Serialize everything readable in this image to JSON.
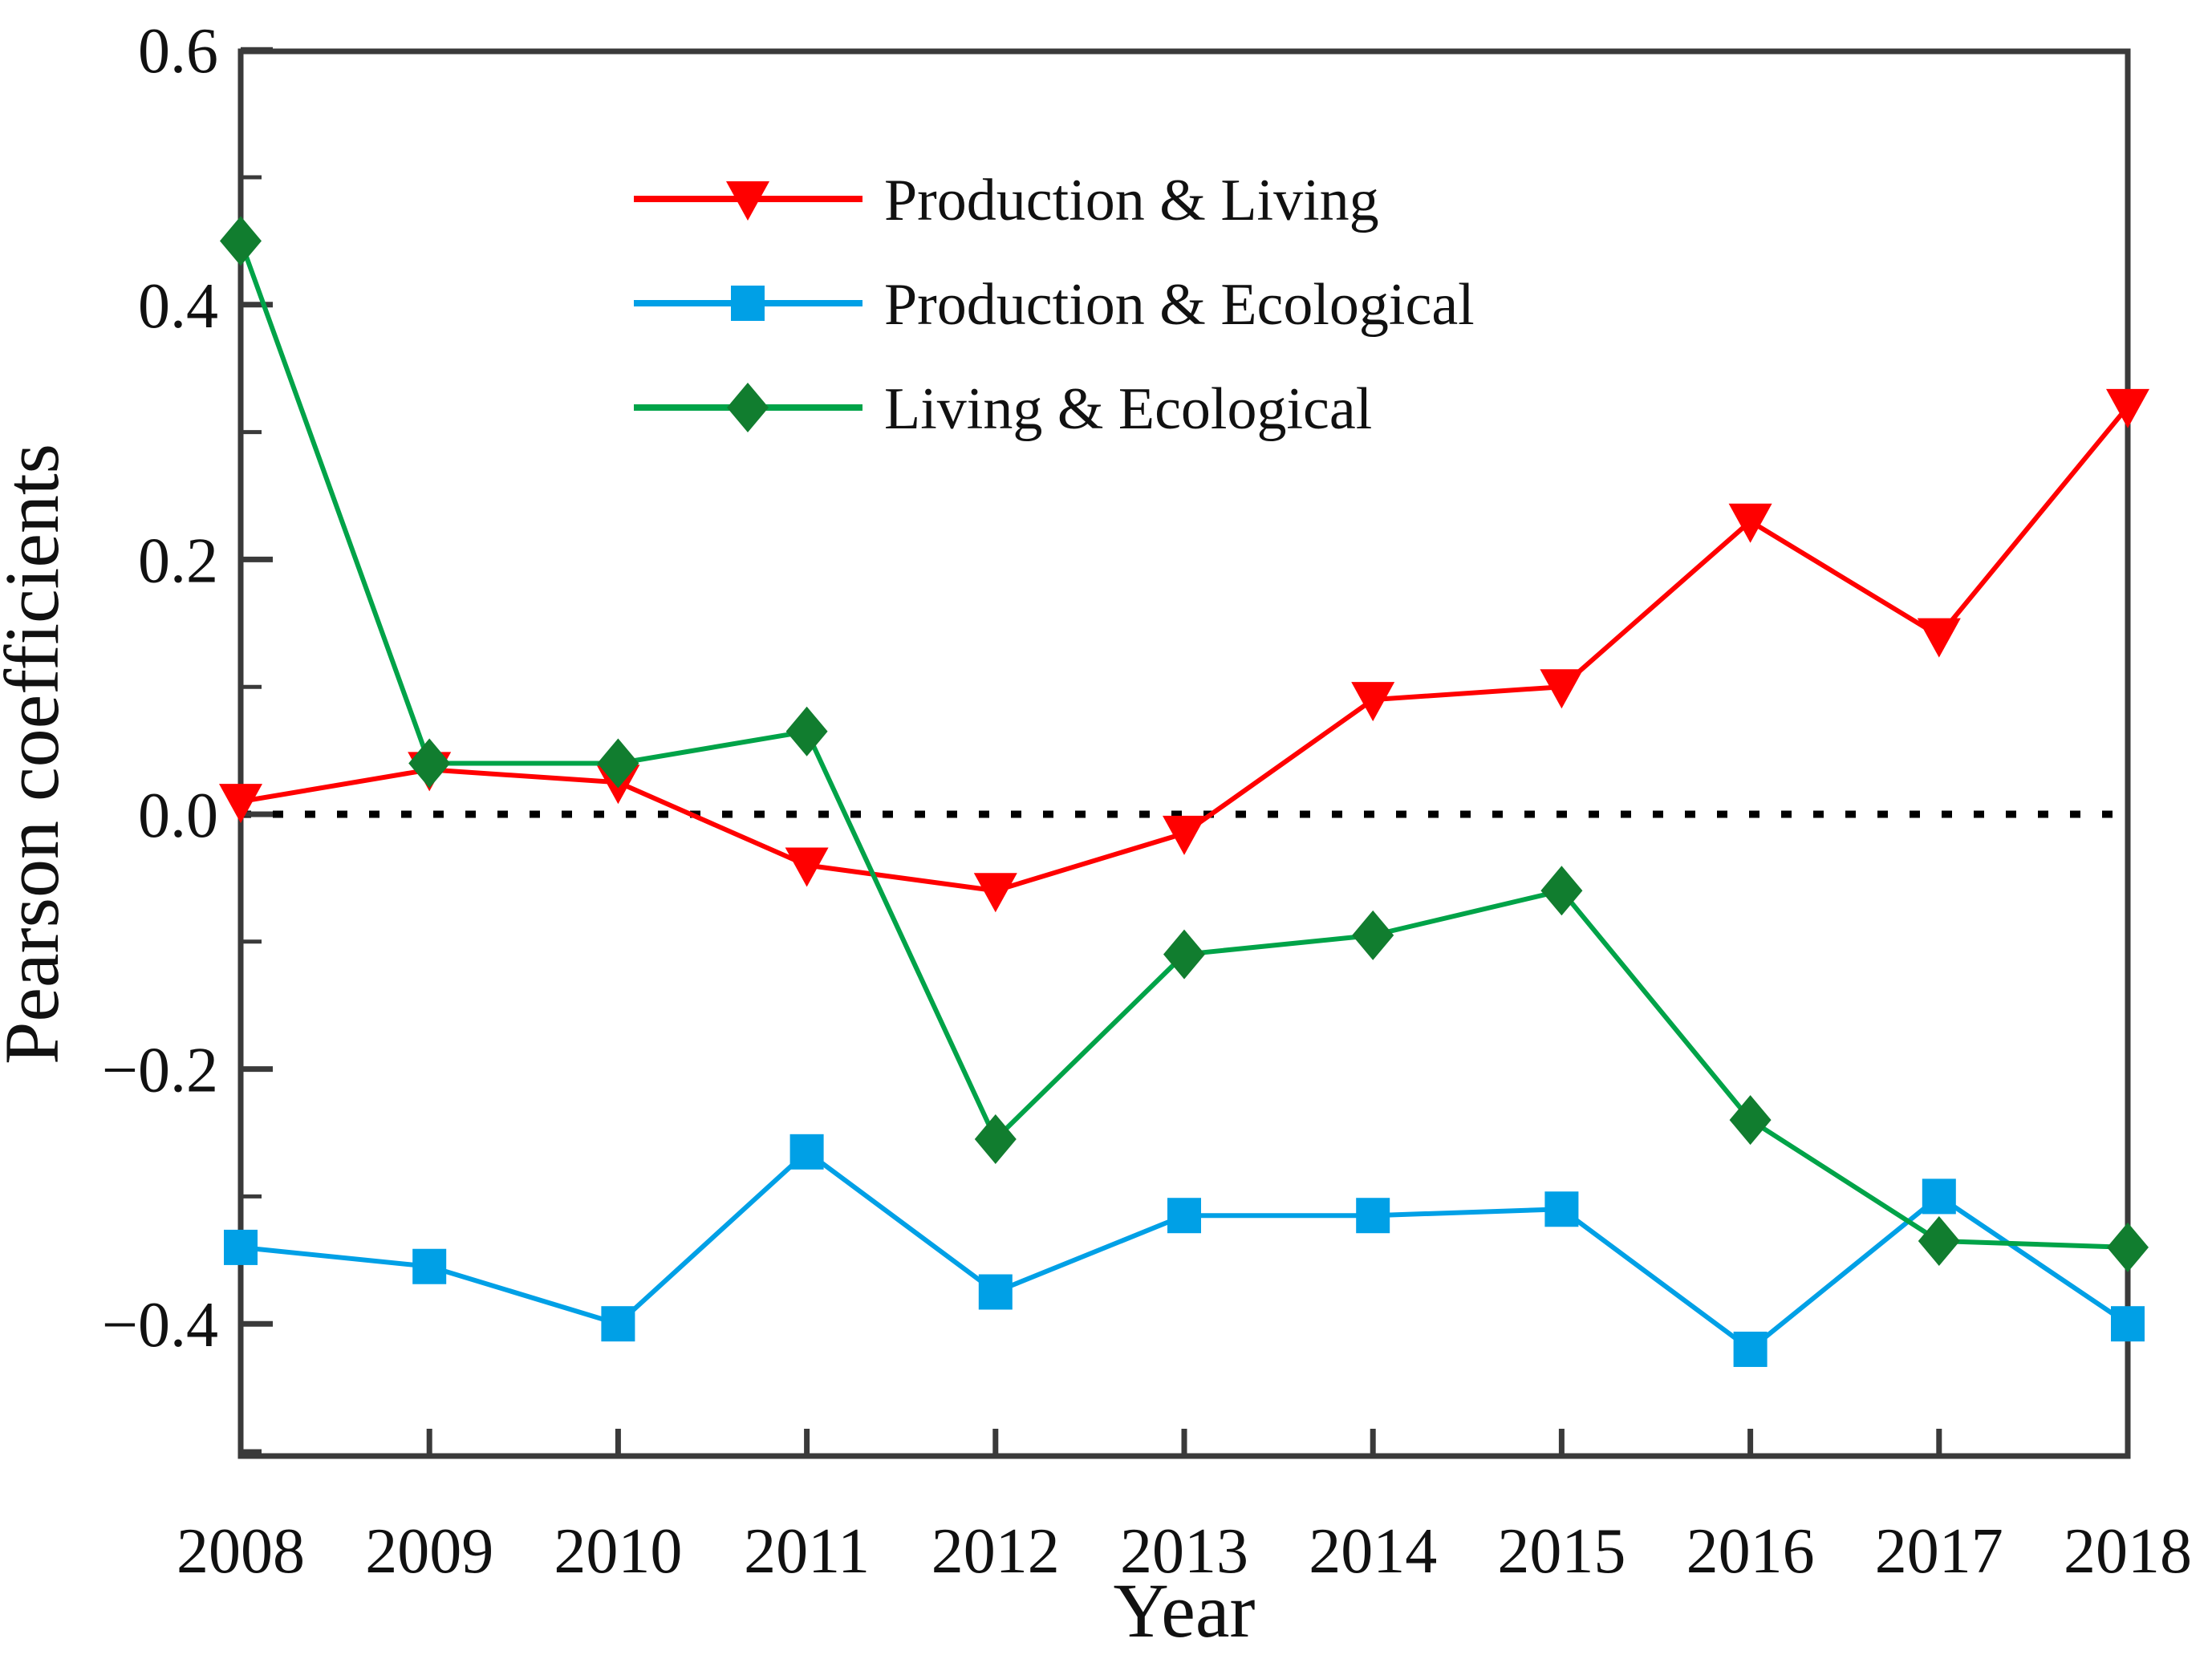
{
  "figure": {
    "background_color": "#ffffff",
    "axis_color": "#3a3a3a",
    "text_color": "#111111"
  },
  "chart_data": {
    "type": "line",
    "title": "",
    "xlabel": "Year",
    "ylabel": "Pearson coefficients",
    "x": [
      2008,
      2009,
      2010,
      2011,
      2012,
      2013,
      2014,
      2015,
      2016,
      2017,
      2018
    ],
    "ylim": [
      -0.5,
      0.6
    ],
    "yticks_major": [
      0.6,
      0.4,
      0.2,
      0.0,
      -0.2,
      -0.4
    ],
    "yticks_minor": [
      0.5,
      0.3,
      0.1,
      -0.1,
      -0.3,
      -0.5
    ],
    "xticks": [
      2008,
      2009,
      2010,
      2011,
      2012,
      2013,
      2014,
      2015,
      2016,
      2017,
      2018
    ],
    "grid": false,
    "zero_line": {
      "show": true,
      "style": "dotted",
      "color": "#000000",
      "value": 0.0
    },
    "legend": {
      "position": "inside-top-center"
    },
    "series": [
      {
        "name": "Production & Living",
        "color": "#ff0000",
        "marker_color": "#ff0000",
        "marker": "triangle-down",
        "values": [
          0.01,
          0.035,
          0.025,
          -0.04,
          -0.06,
          -0.015,
          0.09,
          0.1,
          0.23,
          0.14,
          0.32
        ]
      },
      {
        "name": "Production & Ecological",
        "color": "#00a0e6",
        "marker_color": "#00a0e6",
        "marker": "square",
        "values": [
          -0.34,
          -0.355,
          -0.4,
          -0.265,
          -0.375,
          -0.315,
          -0.315,
          -0.31,
          -0.42,
          -0.3,
          -0.4
        ]
      },
      {
        "name": "Living & Ecological",
        "color": "#00a348",
        "marker_color": "#117d2f",
        "marker": "diamond",
        "values": [
          0.45,
          0.04,
          0.04,
          0.065,
          -0.255,
          -0.11,
          -0.095,
          -0.06,
          -0.24,
          -0.335,
          -0.34
        ]
      }
    ]
  }
}
